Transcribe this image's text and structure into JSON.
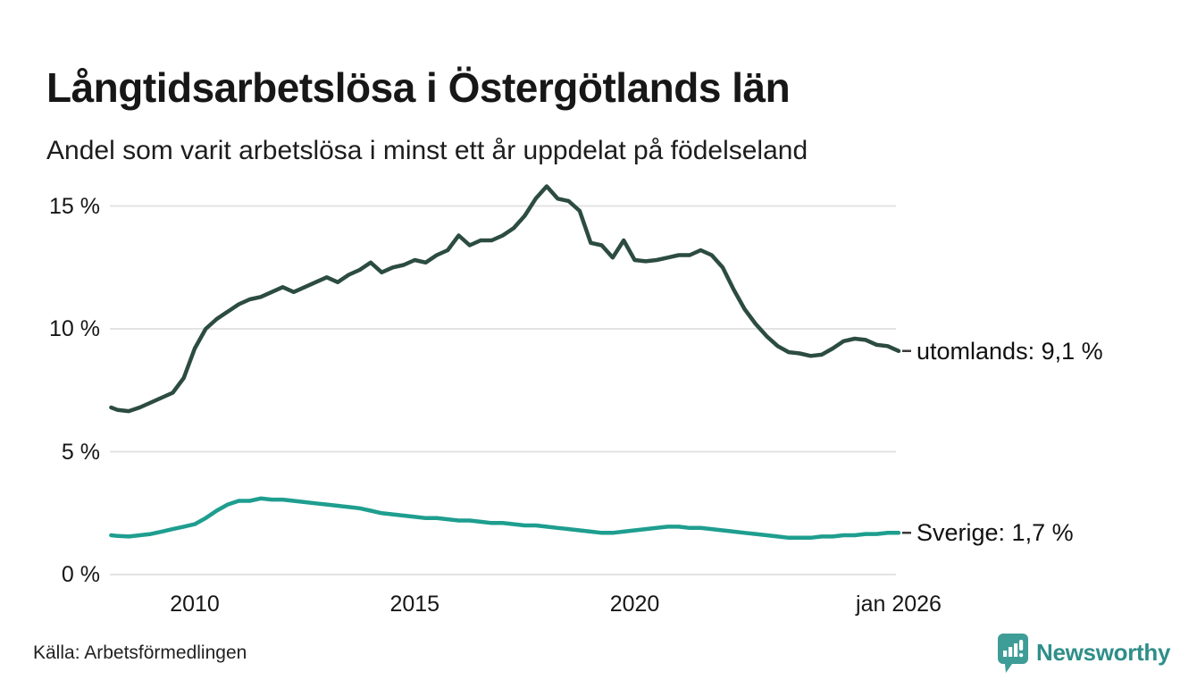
{
  "title": "Långtidsarbetslösa i Östergötlands län",
  "subtitle": "Andel som varit arbetslösa i minst ett år uppdelat på födelseland",
  "source": "Källa: Arbetsförmedlingen",
  "branding": {
    "name": "Newsworthy",
    "icon": "newsworthy-bar-chart-bubble-icon",
    "wordmark_color": "#2E8E89",
    "icon_color": "#3E9D96"
  },
  "colors": {
    "series_utomlands": "#2C4C40",
    "series_sverige": "#1E9E8F",
    "gridline": "#E3E3E3",
    "axis_text": "#161616",
    "label_connector": "#3A3A3A",
    "background": "#FFFFFF"
  },
  "chart_data": {
    "type": "line",
    "title": "Långtidsarbetslösa i Östergötlands län",
    "subtitle": "Andel som varit arbetslösa i minst ett år uppdelat på födelseland",
    "xlabel": "",
    "ylabel": "",
    "grid": true,
    "legend_position": "end-of-line-labels",
    "xlim": [
      2008,
      2026.1
    ],
    "ylim": [
      0,
      16.5
    ],
    "y_ticks": [
      {
        "value": 0,
        "label": "0 %"
      },
      {
        "value": 5,
        "label": "5 %"
      },
      {
        "value": 10,
        "label": "10 %"
      },
      {
        "value": 15,
        "label": "15 %"
      }
    ],
    "x_ticks": [
      {
        "value": 2010,
        "label": "2010"
      },
      {
        "value": 2015,
        "label": "2015"
      },
      {
        "value": 2020,
        "label": "2020"
      },
      {
        "value": 2026,
        "label": "jan 2026"
      }
    ],
    "x": [
      2008.1,
      2008.25,
      2008.5,
      2008.75,
      2009,
      2009.25,
      2009.5,
      2009.75,
      2010,
      2010.25,
      2010.5,
      2010.75,
      2011,
      2011.25,
      2011.5,
      2011.75,
      2012,
      2012.25,
      2012.5,
      2012.75,
      2013,
      2013.25,
      2013.5,
      2013.75,
      2014,
      2014.25,
      2014.5,
      2014.75,
      2015,
      2015.25,
      2015.5,
      2015.75,
      2016,
      2016.25,
      2016.5,
      2016.75,
      2017,
      2017.25,
      2017.5,
      2017.75,
      2018,
      2018.25,
      2018.5,
      2018.75,
      2019,
      2019.25,
      2019.5,
      2019.75,
      2020,
      2020.25,
      2020.5,
      2020.75,
      2021,
      2021.25,
      2021.5,
      2021.75,
      2022,
      2022.25,
      2022.5,
      2022.75,
      2023,
      2023.25,
      2023.5,
      2023.75,
      2024,
      2024.25,
      2024.5,
      2024.75,
      2025,
      2025.25,
      2025.5,
      2025.75,
      2026
    ],
    "series": [
      {
        "name": "utomlands",
        "label": "utomlands: 9,1 %",
        "end_value": 9.1,
        "color": "#2C4C40",
        "values": [
          6.8,
          6.7,
          6.65,
          6.8,
          7.0,
          7.2,
          7.4,
          8.0,
          9.2,
          10.0,
          10.4,
          10.7,
          11.0,
          11.2,
          11.3,
          11.5,
          11.7,
          11.5,
          11.7,
          11.9,
          12.1,
          11.9,
          12.2,
          12.4,
          12.7,
          12.3,
          12.5,
          12.6,
          12.8,
          12.7,
          13.0,
          13.2,
          13.8,
          13.4,
          13.6,
          13.6,
          13.8,
          14.1,
          14.6,
          15.3,
          15.8,
          15.3,
          15.2,
          14.8,
          13.5,
          13.4,
          12.9,
          13.6,
          12.8,
          12.75,
          12.8,
          12.9,
          13.0,
          13.0,
          13.2,
          13.0,
          12.5,
          11.6,
          10.8,
          10.2,
          9.7,
          9.3,
          9.05,
          9.0,
          8.9,
          8.95,
          9.2,
          9.5,
          9.6,
          9.55,
          9.35,
          9.3,
          9.1
        ]
      },
      {
        "name": "Sverige",
        "label": "Sverige: 1,7 %",
        "end_value": 1.7,
        "color": "#1E9E8F",
        "values": [
          1.6,
          1.57,
          1.55,
          1.6,
          1.65,
          1.75,
          1.85,
          1.95,
          2.05,
          2.3,
          2.6,
          2.85,
          3.0,
          3.0,
          3.1,
          3.05,
          3.05,
          3.0,
          2.95,
          2.9,
          2.85,
          2.8,
          2.75,
          2.7,
          2.6,
          2.5,
          2.45,
          2.4,
          2.35,
          2.3,
          2.3,
          2.25,
          2.2,
          2.2,
          2.15,
          2.1,
          2.1,
          2.05,
          2.0,
          2.0,
          1.95,
          1.9,
          1.85,
          1.8,
          1.75,
          1.7,
          1.7,
          1.75,
          1.8,
          1.85,
          1.9,
          1.95,
          1.95,
          1.9,
          1.9,
          1.85,
          1.8,
          1.75,
          1.7,
          1.65,
          1.6,
          1.55,
          1.5,
          1.5,
          1.5,
          1.55,
          1.55,
          1.6,
          1.6,
          1.65,
          1.65,
          1.7,
          1.7
        ]
      }
    ]
  }
}
